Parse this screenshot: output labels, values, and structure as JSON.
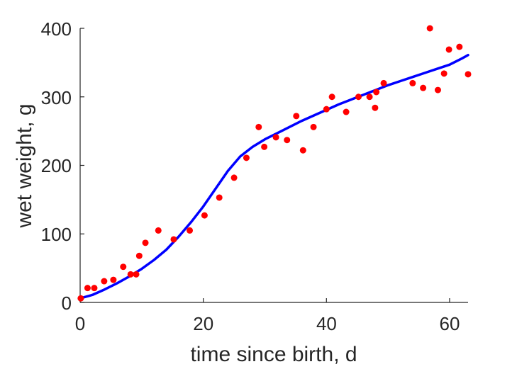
{
  "chart_data": {
    "type": "scatter",
    "title": "",
    "xlabel": "time since birth, d",
    "ylabel": "wet weight, g",
    "xlim": [
      0,
      63
    ],
    "ylim": [
      0,
      400
    ],
    "xticks": [
      0,
      20,
      40,
      60
    ],
    "yticks": [
      0,
      100,
      200,
      300,
      400
    ],
    "xtick_labels": [
      "0",
      "20",
      "40",
      "60"
    ],
    "ytick_labels": [
      "0",
      "100",
      "200",
      "300",
      "400"
    ],
    "grid": false,
    "legend": "none",
    "series": [
      {
        "kind": "points",
        "color": "#ff0000",
        "points": [
          [
            0.1,
            6
          ],
          [
            1.2,
            21
          ],
          [
            2.3,
            21
          ],
          [
            3.9,
            31
          ],
          [
            5.4,
            33
          ],
          [
            7.0,
            52
          ],
          [
            8.2,
            41
          ],
          [
            9.1,
            41
          ],
          [
            9.6,
            68
          ],
          [
            10.6,
            87
          ],
          [
            12.7,
            105
          ],
          [
            15.2,
            92
          ],
          [
            17.8,
            105
          ],
          [
            20.2,
            127
          ],
          [
            22.6,
            153
          ],
          [
            25.0,
            182
          ],
          [
            27.0,
            211
          ],
          [
            29.0,
            256
          ],
          [
            29.9,
            227
          ],
          [
            31.8,
            241
          ],
          [
            33.6,
            237
          ],
          [
            35.1,
            272
          ],
          [
            36.2,
            222
          ],
          [
            37.9,
            256
          ],
          [
            40.0,
            282
          ],
          [
            40.9,
            300
          ],
          [
            43.2,
            278
          ],
          [
            45.2,
            300
          ],
          [
            47.0,
            300
          ],
          [
            47.9,
            284
          ],
          [
            48.1,
            307
          ],
          [
            49.3,
            320
          ],
          [
            54.0,
            320
          ],
          [
            55.7,
            313
          ],
          [
            56.8,
            400
          ],
          [
            58.1,
            310
          ],
          [
            59.1,
            334
          ],
          [
            59.9,
            369
          ],
          [
            61.6,
            373
          ],
          [
            63.0,
            333
          ]
        ]
      },
      {
        "kind": "curve",
        "color": "#0000ff",
        "points": [
          [
            0,
            6
          ],
          [
            2,
            11
          ],
          [
            4,
            19
          ],
          [
            6,
            28
          ],
          [
            8,
            38
          ],
          [
            10,
            49
          ],
          [
            12,
            62
          ],
          [
            14,
            77
          ],
          [
            16,
            96
          ],
          [
            18,
            117
          ],
          [
            20,
            140
          ],
          [
            22,
            166
          ],
          [
            24,
            192
          ],
          [
            26,
            213
          ],
          [
            28,
            227
          ],
          [
            30,
            238
          ],
          [
            32,
            247
          ],
          [
            34,
            256
          ],
          [
            36,
            265
          ],
          [
            38,
            273
          ],
          [
            40,
            281
          ],
          [
            42,
            289
          ],
          [
            44,
            296
          ],
          [
            46,
            303
          ],
          [
            48,
            310
          ],
          [
            50,
            317
          ],
          [
            52,
            323
          ],
          [
            54,
            329
          ],
          [
            56,
            335
          ],
          [
            58,
            341
          ],
          [
            60,
            347
          ],
          [
            62,
            356
          ],
          [
            63,
            361
          ]
        ]
      }
    ]
  }
}
